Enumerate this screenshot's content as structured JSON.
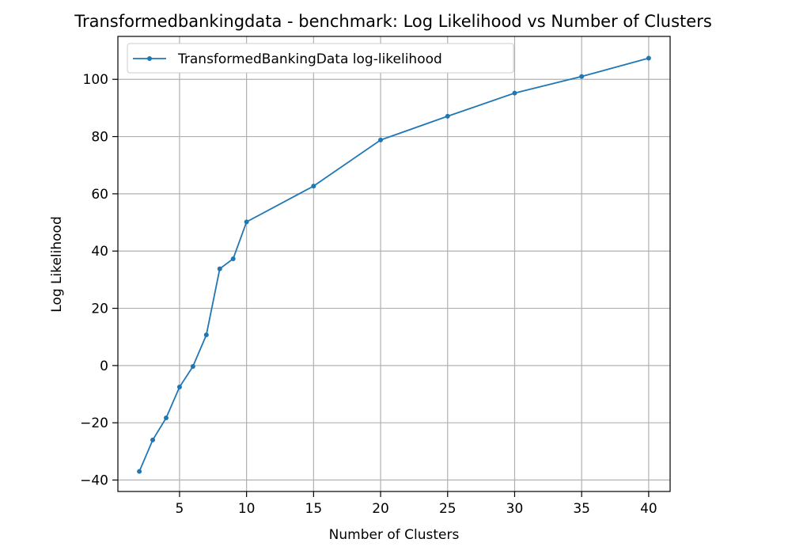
{
  "chart_data": {
    "type": "line",
    "title": "Transformedbankingdata - benchmark: Log Likelihood vs Number of Clusters",
    "xlabel": "Number of Clusters",
    "ylabel": "Log Likelihood",
    "xlim": [
      0.4,
      41.6
    ],
    "ylim": [
      -44,
      115
    ],
    "xticks": [
      5,
      10,
      15,
      20,
      25,
      30,
      35,
      40
    ],
    "yticks": [
      -40,
      -20,
      0,
      20,
      40,
      60,
      80,
      100
    ],
    "grid": true,
    "legend_position": "upper-left",
    "series": [
      {
        "name": "TransformedBankingData log-likelihood",
        "color": "#1f77b4",
        "marker": "point",
        "x": [
          2,
          3,
          4,
          5,
          6,
          7,
          8,
          9,
          10,
          15,
          20,
          25,
          30,
          35,
          40
        ],
        "y": [
          -37,
          -26,
          -18.3,
          -7.5,
          -0.3,
          10.7,
          33.8,
          37.3,
          50.2,
          62.7,
          78.8,
          87.1,
          95.2,
          101,
          107.4
        ]
      }
    ]
  }
}
